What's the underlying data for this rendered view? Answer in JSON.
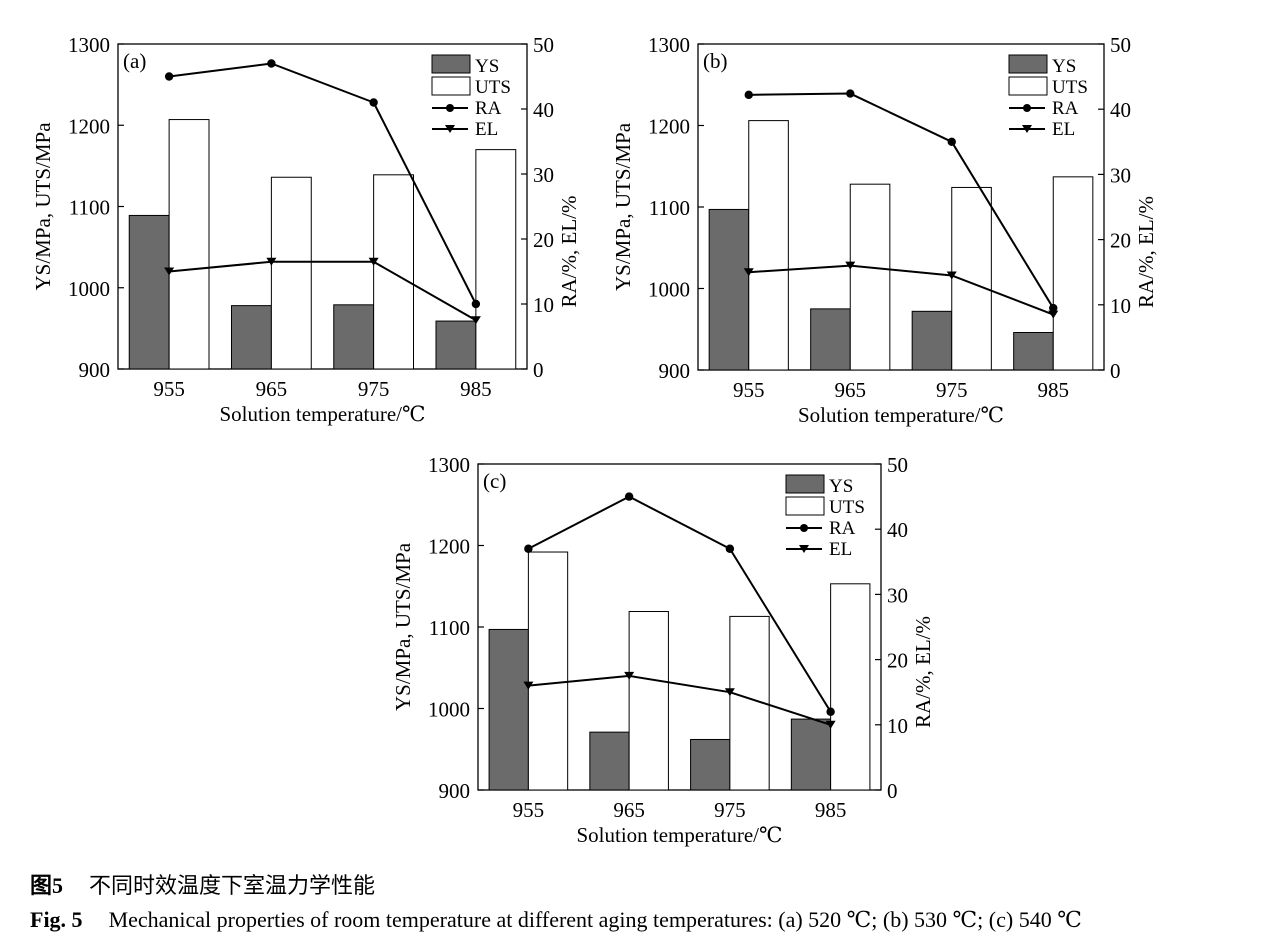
{
  "chart_data": [
    {
      "type": "bar",
      "panel_label": "(a)",
      "categories": [
        "955",
        "965",
        "975",
        "985"
      ],
      "xlabel": "Solution temperature/℃",
      "ylabel": "YS/MPa, UTS/MPa",
      "y2label": "RA/%, EL/%",
      "ylim": [
        900,
        1300
      ],
      "y2lim": [
        0,
        50
      ],
      "yticks": [
        "900",
        "1000",
        "1100",
        "1200",
        "1300"
      ],
      "y2ticks": [
        "0",
        "10",
        "20",
        "30",
        "40",
        "50"
      ],
      "legend_position": "top-right",
      "series": [
        {
          "name": "YS",
          "kind": "bar",
          "axis": "left",
          "values": [
            1089,
            978,
            979,
            959
          ]
        },
        {
          "name": "UTS",
          "kind": "bar",
          "axis": "left",
          "values": [
            1207,
            1136,
            1139,
            1170
          ]
        },
        {
          "name": "RA",
          "kind": "line",
          "marker": "circle",
          "axis": "right",
          "values": [
            45,
            47,
            41,
            10
          ]
        },
        {
          "name": "EL",
          "kind": "line",
          "marker": "triangle-down",
          "axis": "right",
          "values": [
            15,
            16.5,
            16.5,
            7.5
          ]
        }
      ]
    },
    {
      "type": "bar",
      "panel_label": "(b)",
      "categories": [
        "955",
        "965",
        "975",
        "985"
      ],
      "xlabel": "Solution temperature/℃",
      "ylabel": "YS/MPa, UTS/MPa",
      "y2label": "RA/%, EL/%",
      "ylim": [
        900,
        1300
      ],
      "y2lim": [
        0,
        50
      ],
      "yticks": [
        "900",
        "1000",
        "1100",
        "1200",
        "1300"
      ],
      "y2ticks": [
        "0",
        "10",
        "20",
        "30",
        "40",
        "50"
      ],
      "legend_position": "top-right",
      "series": [
        {
          "name": "YS",
          "kind": "bar",
          "axis": "left",
          "values": [
            1097,
            975,
            972,
            946
          ]
        },
        {
          "name": "UTS",
          "kind": "bar",
          "axis": "left",
          "values": [
            1206,
            1128,
            1124,
            1137
          ]
        },
        {
          "name": "RA",
          "kind": "line",
          "marker": "circle",
          "axis": "right",
          "values": [
            42.2,
            42.4,
            35,
            9.5
          ]
        },
        {
          "name": "EL",
          "kind": "line",
          "marker": "triangle-down",
          "axis": "right",
          "values": [
            15,
            16,
            14.5,
            8.5
          ]
        }
      ]
    },
    {
      "type": "bar",
      "panel_label": "(c)",
      "categories": [
        "955",
        "965",
        "975",
        "985"
      ],
      "xlabel": "Solution temperature/℃",
      "ylabel": "YS/MPa, UTS/MPa",
      "y2label": "RA/%, EL/%",
      "ylim": [
        900,
        1300
      ],
      "y2lim": [
        0,
        50
      ],
      "yticks": [
        "900",
        "1000",
        "1100",
        "1200",
        "1300"
      ],
      "y2ticks": [
        "0",
        "10",
        "20",
        "30",
        "40",
        "50"
      ],
      "legend_position": "top-right",
      "series": [
        {
          "name": "YS",
          "kind": "bar",
          "axis": "left",
          "values": [
            1097,
            971,
            962,
            987
          ]
        },
        {
          "name": "UTS",
          "kind": "bar",
          "axis": "left",
          "values": [
            1192,
            1119,
            1113,
            1153
          ]
        },
        {
          "name": "RA",
          "kind": "line",
          "marker": "circle",
          "axis": "right",
          "values": [
            37,
            45,
            37,
            12
          ]
        },
        {
          "name": "EL",
          "kind": "line",
          "marker": "triangle-down",
          "axis": "right",
          "values": [
            16,
            17.5,
            15,
            10
          ]
        }
      ]
    }
  ],
  "colors": {
    "ys_fill": "#6b6b6b",
    "uts_fill": "#ffffff",
    "line": "#000000"
  },
  "caption": {
    "cn_label": "图5",
    "cn_text": "不同时效温度下室温力学性能",
    "en_label": "Fig. 5",
    "en_text": "Mechanical properties of room temperature at different aging temperatures: (a) 520 ℃; (b) 530 ℃; (c) 540 ℃"
  }
}
